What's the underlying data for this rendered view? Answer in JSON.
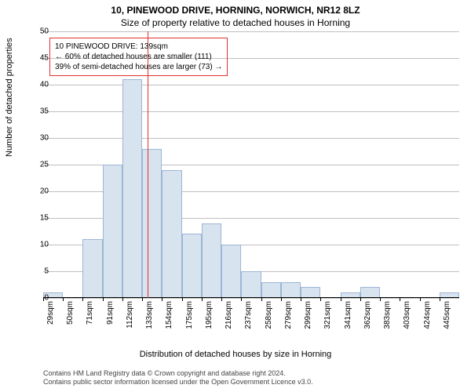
{
  "chart": {
    "type": "histogram",
    "title_main": "10, PINEWOOD DRIVE, HORNING, NORWICH, NR12 8LZ",
    "title_sub": "Size of property relative to detached houses in Horning",
    "y_axis_label": "Number of detached properties",
    "x_axis_label": "Distribution of detached houses by size in Horning",
    "ylim": [
      0,
      50
    ],
    "ytick_step": 5,
    "yticks": [
      0,
      5,
      10,
      15,
      20,
      25,
      30,
      35,
      40,
      45,
      50
    ],
    "grid_color": "#bfbfbf",
    "bar_fill": "#d8e3f0",
    "bar_stroke": "#9db6d4",
    "background_color": "#ffffff",
    "ref_line_color": "#e03030",
    "ref_line_x": 139,
    "annotation_border": "#e03030",
    "x_categories": [
      "29sqm",
      "50sqm",
      "71sqm",
      "91sqm",
      "112sqm",
      "133sqm",
      "154sqm",
      "175sqm",
      "195sqm",
      "216sqm",
      "237sqm",
      "258sqm",
      "279sqm",
      "299sqm",
      "321sqm",
      "341sqm",
      "362sqm",
      "383sqm",
      "403sqm",
      "424sqm",
      "445sqm"
    ],
    "values": [
      1,
      0,
      11,
      25,
      41,
      28,
      24,
      12,
      14,
      10,
      5,
      3,
      3,
      2,
      0,
      1,
      2,
      0,
      0,
      0,
      1
    ],
    "annotation": {
      "line1": "10 PINEWOOD DRIVE: 139sqm",
      "line2": "← 60% of detached houses are smaller (111)",
      "line3": "39% of semi-detached houses are larger (73) →"
    },
    "attribution": {
      "line1": "Contains HM Land Registry data © Crown copyright and database right 2024.",
      "line2": "Contains public sector information licensed under the Open Government Licence v3.0."
    },
    "title_fontsize": 12,
    "label_fontsize": 11,
    "tick_fontsize": 10,
    "annotation_fontsize": 10,
    "attribution_fontsize": 9
  }
}
